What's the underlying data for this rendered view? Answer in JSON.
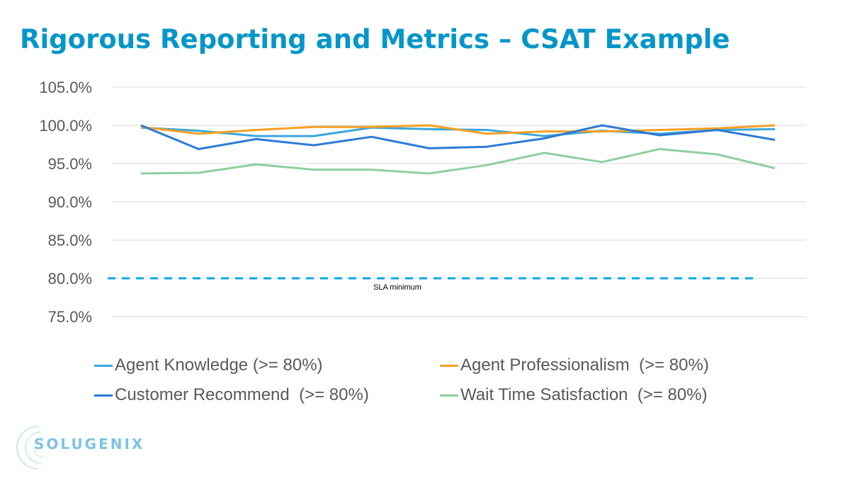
{
  "slide": {
    "title": "Rigorous Reporting and Metrics – CSAT Example"
  },
  "logo": {
    "text": "SOLUGENIX",
    "icon": "concentric-arcs-icon"
  },
  "chart_data": {
    "type": "line",
    "title": "",
    "xlabel": "",
    "ylabel": "",
    "ylim": [
      75,
      105
    ],
    "y_ticks": [
      105,
      100,
      95,
      90,
      85,
      80,
      75
    ],
    "y_tick_labels": [
      "105.0%",
      "100.0%",
      "95.0%",
      "90.0%",
      "85.0%",
      "80.0%",
      "75.0%"
    ],
    "grid": true,
    "x": [
      1,
      2,
      3,
      4,
      5,
      6,
      7,
      8,
      9,
      10,
      11,
      12
    ],
    "x_tick_labels": [],
    "series": [
      {
        "name": "Agent Knowledge (>= 80%)",
        "color": "#3aa7dc",
        "values": [
          99.7,
          99.3,
          98.6,
          98.6,
          99.7,
          99.5,
          99.4,
          98.6,
          99.3,
          98.9,
          99.4,
          99.5
        ]
      },
      {
        "name": "Agent Professionalism  (>= 80%)",
        "color": "#f5a023",
        "values": [
          99.8,
          98.9,
          99.4,
          99.8,
          99.8,
          100.0,
          98.9,
          99.2,
          99.2,
          99.4,
          99.6,
          100.0
        ]
      },
      {
        "name": "Customer Recommend  (>= 80%)",
        "color": "#2b7bd6",
        "values": [
          100.0,
          96.9,
          98.2,
          97.4,
          98.5,
          97.0,
          97.2,
          98.3,
          100.0,
          98.7,
          99.4,
          98.1
        ]
      },
      {
        "name": "Wait Time Satisfaction  (>= 80%)",
        "color": "#8fcf9f",
        "values": [
          93.7,
          93.8,
          94.9,
          94.2,
          94.2,
          93.7,
          94.8,
          96.4,
          95.2,
          96.9,
          96.2,
          94.4
        ]
      }
    ],
    "reference_line": {
      "label": "SLA minimum",
      "value": 80,
      "color": "#00a8e8",
      "style": "dashed"
    },
    "legend": {
      "placement": "bottom",
      "columns": 2
    }
  }
}
